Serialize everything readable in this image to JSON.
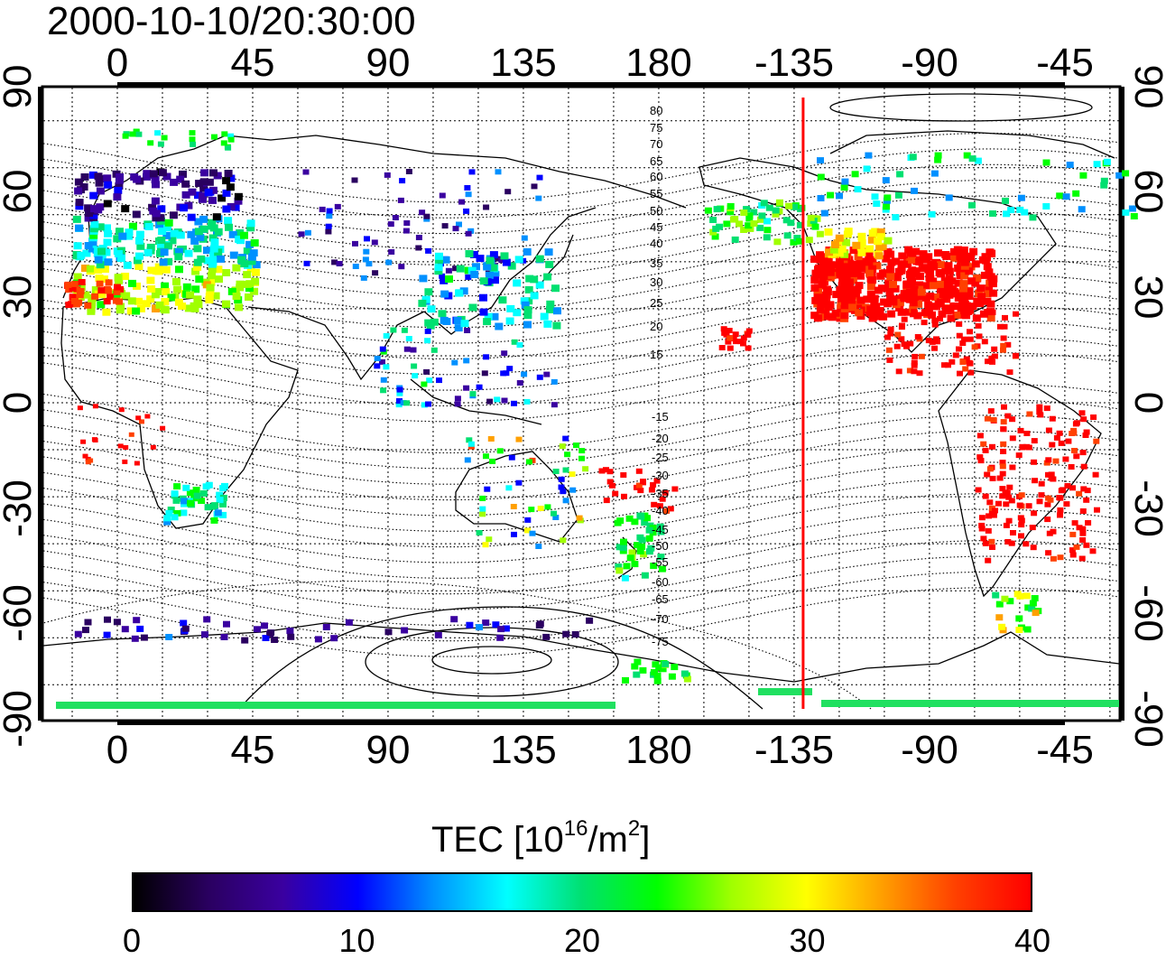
{
  "timestamp": "2000-10-10/20:30:00",
  "map": {
    "x_ticks_top": [
      "0",
      "45",
      "90",
      "135",
      "180",
      "-135",
      "-90",
      "-45"
    ],
    "x_ticks_bottom": [
      "0",
      "45",
      "90",
      "135",
      "180",
      "-135",
      "-90",
      "-45"
    ],
    "y_ticks_left": [
      "90",
      "60",
      "30",
      "0",
      "-30",
      "-60",
      "-90"
    ],
    "y_ticks_right": [
      "90",
      "60",
      "30",
      "0",
      "-30",
      "-60",
      "-90"
    ],
    "grid": true,
    "terminator_longitude": -132,
    "terminator_color": "#ff0000",
    "magnetic_latitude_labels_north": [
      "80",
      "75",
      "70",
      "65",
      "60",
      "55",
      "50",
      "45",
      "40",
      "35",
      "30",
      "25",
      "20",
      "15"
    ],
    "magnetic_latitude_labels_south": [
      "-15",
      "-20",
      "-25",
      "-30",
      "-35",
      "-40",
      "-45",
      "-50",
      "-55",
      "-60",
      "-65",
      "-70",
      "-75"
    ]
  },
  "colorbar": {
    "title_main": "TEC  [10",
    "title_exp1": "16",
    "title_mid": "/m",
    "title_exp2": "2",
    "title_end": "]",
    "min": 0,
    "max": 40,
    "tick_labels": [
      "0",
      "10",
      "20",
      "30",
      "40"
    ],
    "colors": [
      "#000000",
      "#2a0060",
      "#3a00a0",
      "#0000ff",
      "#0090ff",
      "#00ffff",
      "#00e070",
      "#00ff00",
      "#a0ff00",
      "#ffff00",
      "#ffa000",
      "#ff4000",
      "#ff0000"
    ]
  }
}
